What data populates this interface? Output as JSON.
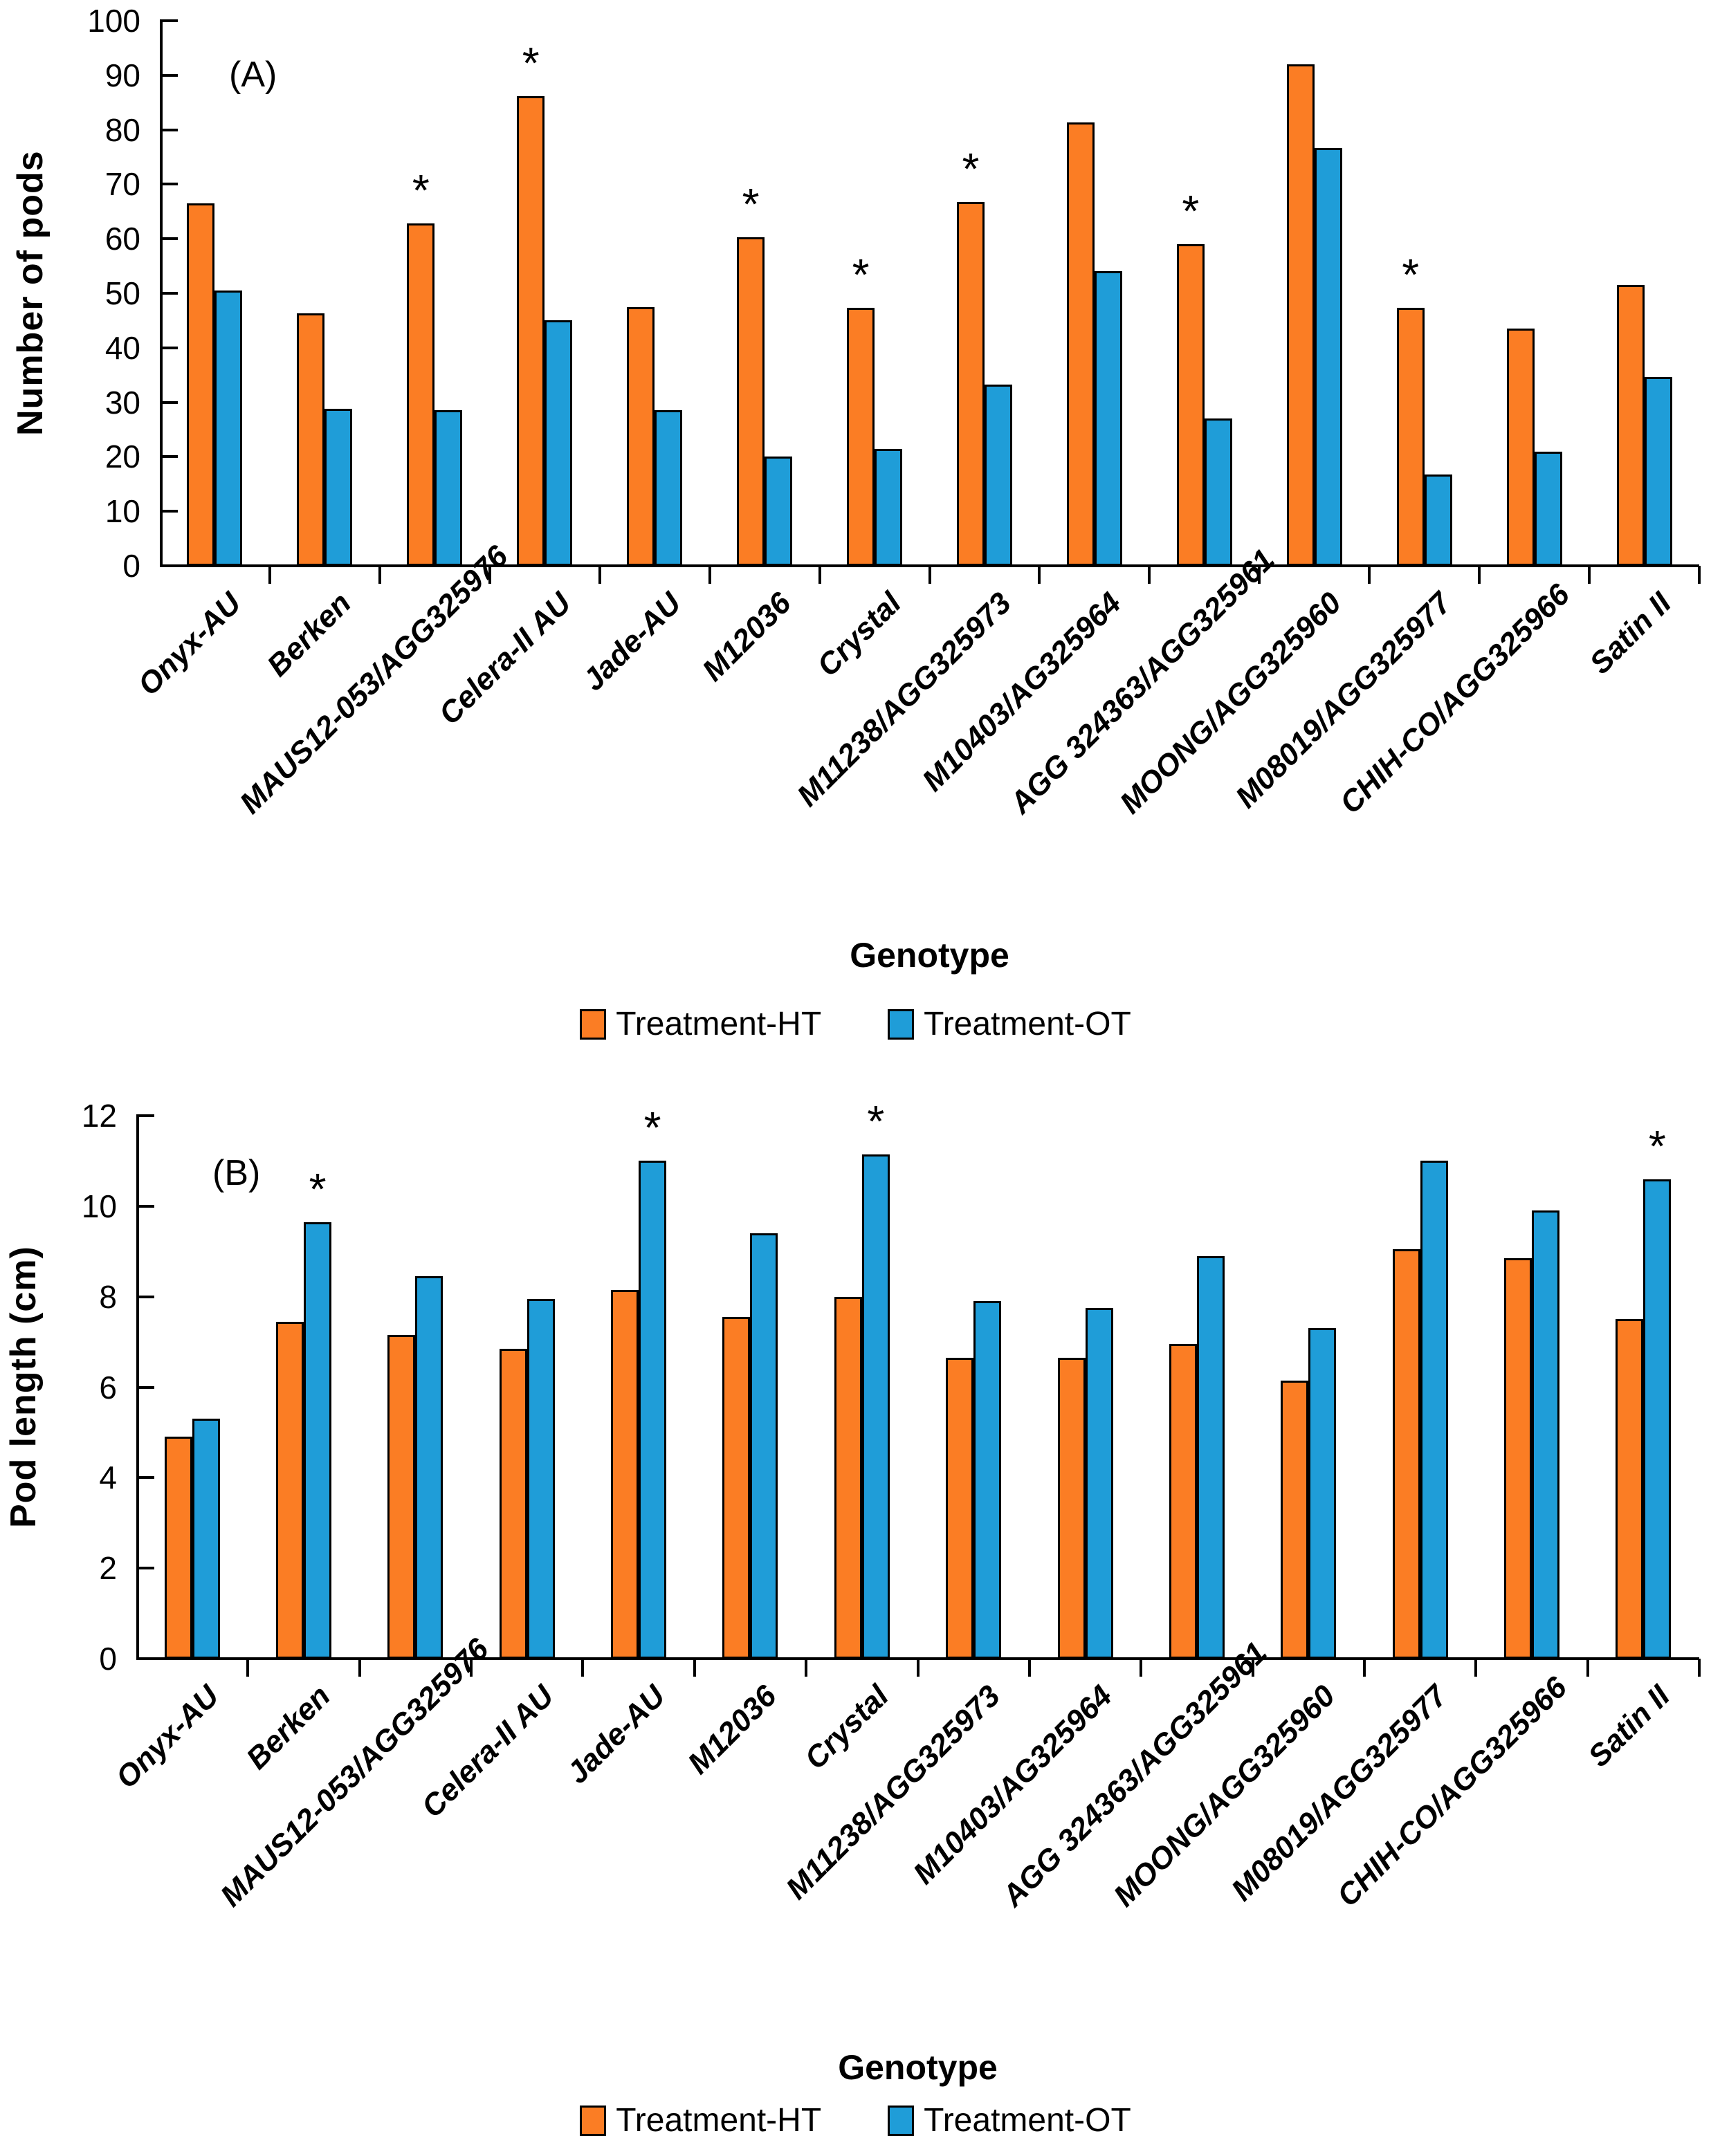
{
  "chart_data": [
    {
      "id": "A",
      "type": "bar",
      "panel_label": "(A)",
      "xlabel": "Genotype",
      "ylabel": "Number of pods",
      "ylim": [
        0,
        100
      ],
      "ytick_step": 10,
      "grid": false,
      "legend_position": "bottom-center",
      "sig_marker": "*",
      "bar_border_color": "#000000",
      "categories": [
        "Onyx-AU",
        "Berken",
        "MAUS12-053/AGG325976",
        "Celera-II AU",
        "Jade-AU",
        "M12036",
        "Crystal",
        "M11238/AGG325973",
        "M10403/AG325964",
        "AGG 324363/AGG325961",
        "MOONG/AGG325960",
        "M08019/AGG325977",
        "CHIH-CO/AGG325966",
        "Satin II"
      ],
      "series": [
        {
          "name": "Treatment-HT",
          "color": "#FB7D24",
          "values": [
            66.5,
            46.3,
            62.8,
            86.2,
            47.5,
            60.3,
            47.3,
            66.7,
            81.3,
            59.0,
            92.0,
            47.3,
            43.5,
            51.5
          ],
          "sig_indices": [
            2,
            3,
            5,
            6,
            7,
            9,
            11
          ]
        },
        {
          "name": "Treatment-OT",
          "color": "#1F9DD8",
          "values": [
            50.5,
            28.8,
            28.5,
            45.0,
            28.5,
            20.0,
            21.5,
            33.3,
            54.0,
            27.0,
            76.7,
            16.7,
            21.0,
            34.7
          ],
          "sig_indices": []
        }
      ]
    },
    {
      "id": "B",
      "type": "bar",
      "panel_label": "(B)",
      "xlabel": "Genotype",
      "ylabel": "Pod length (cm)",
      "ylim": [
        0,
        12
      ],
      "ytick_step": 2,
      "grid": false,
      "legend_position": "bottom-center",
      "sig_marker": "*",
      "bar_border_color": "#000000",
      "categories": [
        "Onyx-AU",
        "Berken",
        "MAUS12-053/AGG325976",
        "Celera-II AU",
        "Jade-AU",
        "M12036",
        "Crystal",
        "M11238/AGG325973",
        "M10403/AG325964",
        "AGG 324363/AGG325961",
        "MOONG/AGG325960",
        "M08019/AGG325977",
        "CHIH-CO/AGG325966",
        "Satin II"
      ],
      "series": [
        {
          "name": "Treatment-HT",
          "color": "#FB7D24",
          "values": [
            4.9,
            7.45,
            7.15,
            6.85,
            8.15,
            7.55,
            8.0,
            6.65,
            6.65,
            6.95,
            6.15,
            9.05,
            8.85,
            7.5
          ],
          "sig_indices": []
        },
        {
          "name": "Treatment-OT",
          "color": "#1F9DD8",
          "values": [
            5.3,
            9.65,
            8.45,
            7.95,
            11.0,
            9.4,
            11.15,
            7.9,
            7.75,
            8.9,
            7.3,
            11.0,
            9.9,
            10.6
          ],
          "sig_indices": [
            1,
            4,
            6,
            13
          ]
        }
      ]
    }
  ]
}
